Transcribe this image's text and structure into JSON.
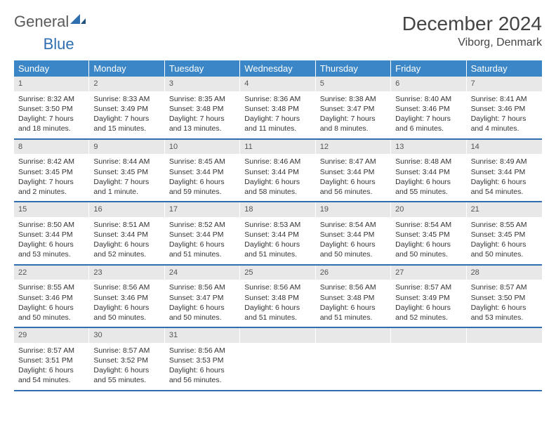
{
  "brand": {
    "text1": "General",
    "text2": "Blue"
  },
  "title": "December 2024",
  "location": "Viborg, Denmark",
  "colors": {
    "header_bg": "#3b86c6",
    "header_text": "#ffffff",
    "daynum_bg": "#e8e8e8",
    "row_border": "#2f6fb0",
    "brand_gray": "#6a6a6a",
    "brand_blue": "#2f6fb0"
  },
  "dayHeaders": [
    "Sunday",
    "Monday",
    "Tuesday",
    "Wednesday",
    "Thursday",
    "Friday",
    "Saturday"
  ],
  "weeks": [
    [
      {
        "n": "1",
        "sunrise": "8:32 AM",
        "sunset": "3:50 PM",
        "daylight": "7 hours and 18 minutes."
      },
      {
        "n": "2",
        "sunrise": "8:33 AM",
        "sunset": "3:49 PM",
        "daylight": "7 hours and 15 minutes."
      },
      {
        "n": "3",
        "sunrise": "8:35 AM",
        "sunset": "3:48 PM",
        "daylight": "7 hours and 13 minutes."
      },
      {
        "n": "4",
        "sunrise": "8:36 AM",
        "sunset": "3:48 PM",
        "daylight": "7 hours and 11 minutes."
      },
      {
        "n": "5",
        "sunrise": "8:38 AM",
        "sunset": "3:47 PM",
        "daylight": "7 hours and 8 minutes."
      },
      {
        "n": "6",
        "sunrise": "8:40 AM",
        "sunset": "3:46 PM",
        "daylight": "7 hours and 6 minutes."
      },
      {
        "n": "7",
        "sunrise": "8:41 AM",
        "sunset": "3:46 PM",
        "daylight": "7 hours and 4 minutes."
      }
    ],
    [
      {
        "n": "8",
        "sunrise": "8:42 AM",
        "sunset": "3:45 PM",
        "daylight": "7 hours and 2 minutes."
      },
      {
        "n": "9",
        "sunrise": "8:44 AM",
        "sunset": "3:45 PM",
        "daylight": "7 hours and 1 minute."
      },
      {
        "n": "10",
        "sunrise": "8:45 AM",
        "sunset": "3:44 PM",
        "daylight": "6 hours and 59 minutes."
      },
      {
        "n": "11",
        "sunrise": "8:46 AM",
        "sunset": "3:44 PM",
        "daylight": "6 hours and 58 minutes."
      },
      {
        "n": "12",
        "sunrise": "8:47 AM",
        "sunset": "3:44 PM",
        "daylight": "6 hours and 56 minutes."
      },
      {
        "n": "13",
        "sunrise": "8:48 AM",
        "sunset": "3:44 PM",
        "daylight": "6 hours and 55 minutes."
      },
      {
        "n": "14",
        "sunrise": "8:49 AM",
        "sunset": "3:44 PM",
        "daylight": "6 hours and 54 minutes."
      }
    ],
    [
      {
        "n": "15",
        "sunrise": "8:50 AM",
        "sunset": "3:44 PM",
        "daylight": "6 hours and 53 minutes."
      },
      {
        "n": "16",
        "sunrise": "8:51 AM",
        "sunset": "3:44 PM",
        "daylight": "6 hours and 52 minutes."
      },
      {
        "n": "17",
        "sunrise": "8:52 AM",
        "sunset": "3:44 PM",
        "daylight": "6 hours and 51 minutes."
      },
      {
        "n": "18",
        "sunrise": "8:53 AM",
        "sunset": "3:44 PM",
        "daylight": "6 hours and 51 minutes."
      },
      {
        "n": "19",
        "sunrise": "8:54 AM",
        "sunset": "3:44 PM",
        "daylight": "6 hours and 50 minutes."
      },
      {
        "n": "20",
        "sunrise": "8:54 AM",
        "sunset": "3:45 PM",
        "daylight": "6 hours and 50 minutes."
      },
      {
        "n": "21",
        "sunrise": "8:55 AM",
        "sunset": "3:45 PM",
        "daylight": "6 hours and 50 minutes."
      }
    ],
    [
      {
        "n": "22",
        "sunrise": "8:55 AM",
        "sunset": "3:46 PM",
        "daylight": "6 hours and 50 minutes."
      },
      {
        "n": "23",
        "sunrise": "8:56 AM",
        "sunset": "3:46 PM",
        "daylight": "6 hours and 50 minutes."
      },
      {
        "n": "24",
        "sunrise": "8:56 AM",
        "sunset": "3:47 PM",
        "daylight": "6 hours and 50 minutes."
      },
      {
        "n": "25",
        "sunrise": "8:56 AM",
        "sunset": "3:48 PM",
        "daylight": "6 hours and 51 minutes."
      },
      {
        "n": "26",
        "sunrise": "8:56 AM",
        "sunset": "3:48 PM",
        "daylight": "6 hours and 51 minutes."
      },
      {
        "n": "27",
        "sunrise": "8:57 AM",
        "sunset": "3:49 PM",
        "daylight": "6 hours and 52 minutes."
      },
      {
        "n": "28",
        "sunrise": "8:57 AM",
        "sunset": "3:50 PM",
        "daylight": "6 hours and 53 minutes."
      }
    ],
    [
      {
        "n": "29",
        "sunrise": "8:57 AM",
        "sunset": "3:51 PM",
        "daylight": "6 hours and 54 minutes."
      },
      {
        "n": "30",
        "sunrise": "8:57 AM",
        "sunset": "3:52 PM",
        "daylight": "6 hours and 55 minutes."
      },
      {
        "n": "31",
        "sunrise": "8:56 AM",
        "sunset": "3:53 PM",
        "daylight": "6 hours and 56 minutes."
      },
      null,
      null,
      null,
      null
    ]
  ],
  "labels": {
    "sunrise": "Sunrise:",
    "sunset": "Sunset:",
    "daylight": "Daylight:"
  }
}
